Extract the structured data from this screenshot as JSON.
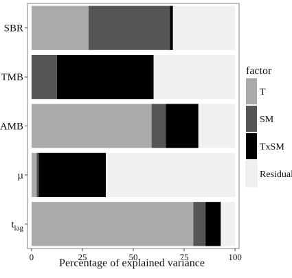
{
  "chart_data": {
    "type": "bar",
    "orientation": "horizontal",
    "stacked": true,
    "categories": [
      "SBR",
      "TMB",
      "AMB",
      "µ",
      "t_lag"
    ],
    "category_labels": [
      {
        "main": "SBR",
        "sub": ""
      },
      {
        "main": "TMB",
        "sub": ""
      },
      {
        "main": "AMB",
        "sub": ""
      },
      {
        "main": "µ",
        "sub": ""
      },
      {
        "main": "t",
        "sub": "lag"
      }
    ],
    "series": [
      {
        "name": "T",
        "color": "#aaaaaa",
        "values": [
          28,
          0,
          59,
          2.5,
          79.5
        ]
      },
      {
        "name": "SM",
        "color": "#555555",
        "values": [
          40,
          12.5,
          7,
          1,
          6
        ]
      },
      {
        "name": "TxSM",
        "color": "#000000",
        "values": [
          1.5,
          47.5,
          16,
          33,
          7.5
        ]
      },
      {
        "name": "Residual",
        "color": "#f0f0f0",
        "values": [
          30.5,
          40,
          18,
          63.5,
          7
        ]
      }
    ],
    "xlabel": "Percentage of explained variance",
    "ylabel": "",
    "xlim": [
      -2,
      102
    ],
    "xticks": [
      0,
      25,
      50,
      75,
      100
    ],
    "legend": {
      "title": "factor",
      "position": "right"
    },
    "grid": false
  }
}
